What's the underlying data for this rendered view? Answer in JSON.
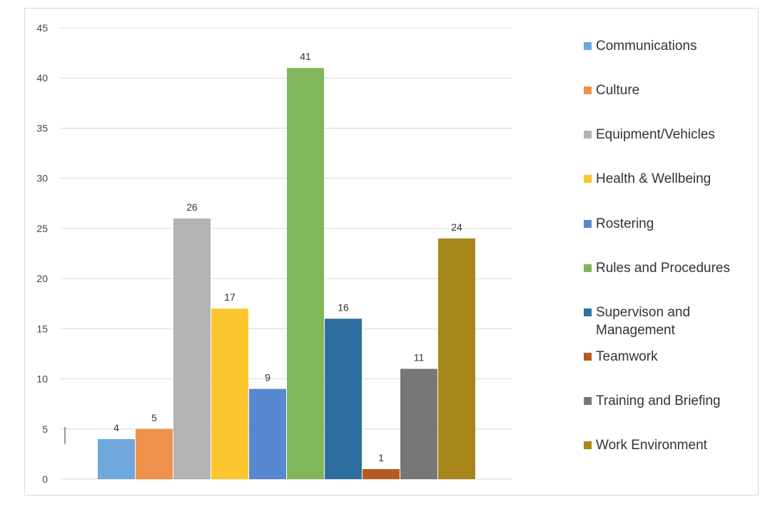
{
  "chart_data": {
    "type": "bar",
    "title": "",
    "xlabel": "",
    "ylabel": "",
    "ylim": [
      0,
      45
    ],
    "yticks": [
      0,
      5,
      10,
      15,
      20,
      25,
      30,
      35,
      40,
      45
    ],
    "grid": true,
    "legend_position": "right",
    "series": [
      {
        "name": "Communications",
        "value": 4,
        "color": "#6fa8dc"
      },
      {
        "name": "Culture",
        "value": 5,
        "color": "#f0914b"
      },
      {
        "name": "Equipment/Vehicles",
        "value": 26,
        "color": "#b3b3b3"
      },
      {
        "name": "Health & Wellbeing",
        "value": 17,
        "color": "#fdc62f"
      },
      {
        "name": "Rostering",
        "value": 9,
        "color": "#5787cf"
      },
      {
        "name": "Rules and Procedures",
        "value": 41,
        "color": "#82b65a"
      },
      {
        "name": "Supervison and Management",
        "value": 16,
        "color": "#2f6f9f"
      },
      {
        "name": "Teamwork",
        "value": 1,
        "color": "#b55a1e"
      },
      {
        "name": "Training and Briefing",
        "value": 11,
        "color": "#777777"
      },
      {
        "name": "Work Environment",
        "value": 24,
        "color": "#a8861c"
      }
    ]
  }
}
